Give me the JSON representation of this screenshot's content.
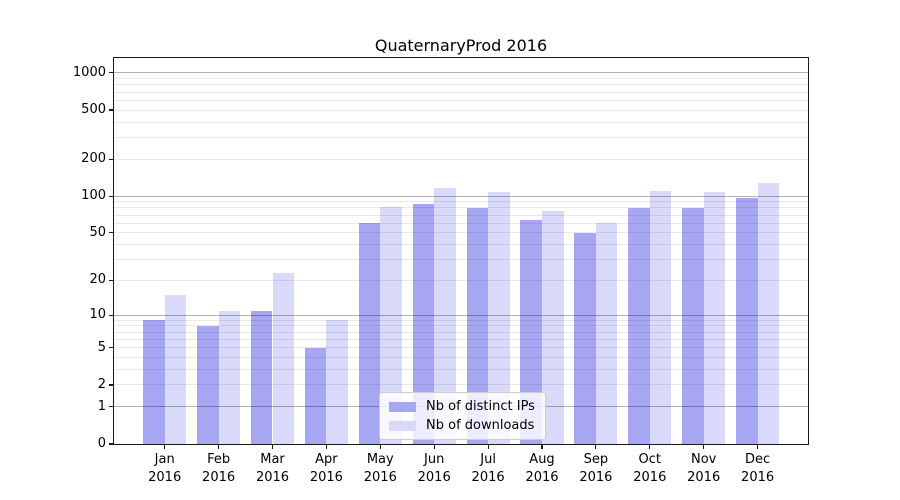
{
  "chart_data": {
    "type": "bar",
    "title": "QuaternaryProd 2016",
    "categories": [
      "Jan",
      "Feb",
      "Mar",
      "Apr",
      "May",
      "Jun",
      "Jul",
      "Aug",
      "Sep",
      "Oct",
      "Nov",
      "Dec"
    ],
    "category_year": "2016",
    "series": [
      {
        "name": "Nb of distinct IPs",
        "color": "#a6a6f3",
        "values": [
          9,
          8,
          11,
          5,
          60,
          87,
          80,
          64,
          50,
          80,
          80,
          96
        ]
      },
      {
        "name": "Nb of downloads",
        "color": "#d9d9fa",
        "values": [
          15,
          11,
          23,
          9,
          82,
          117,
          108,
          75,
          60,
          110,
          108,
          127
        ]
      }
    ],
    "yticks": [
      0,
      1,
      2,
      5,
      10,
      20,
      50,
      100,
      200,
      500,
      1000
    ],
    "major_gridlines": [
      1,
      10,
      100,
      1000
    ],
    "minor_gridlines": [
      3,
      4,
      6,
      7,
      8,
      9,
      30,
      40,
      60,
      70,
      80,
      90,
      300,
      400,
      600,
      700,
      800,
      900
    ],
    "scale": "log1p",
    "ylim": [
      0,
      1320
    ],
    "grid": true,
    "legend_position": "inside-bottom-center"
  }
}
